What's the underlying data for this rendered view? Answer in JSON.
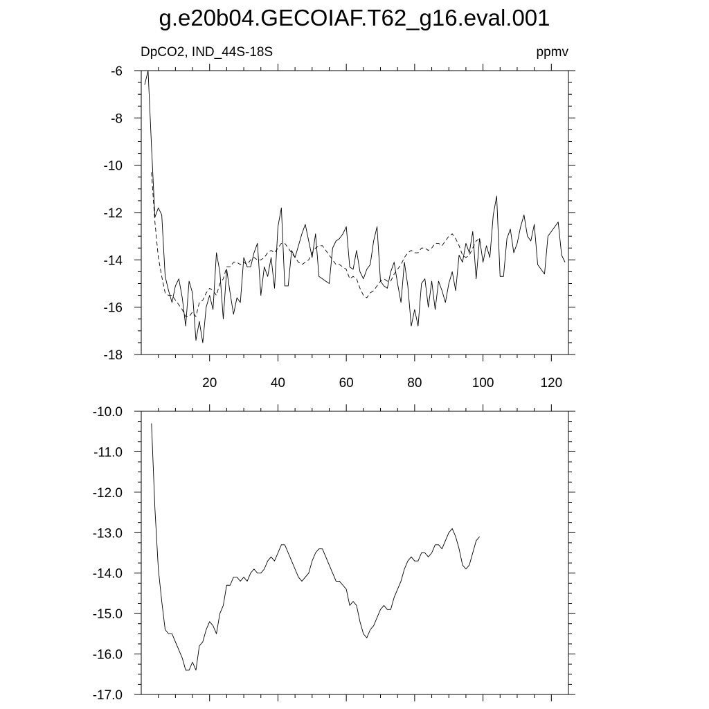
{
  "title": "g.e20b04.GECOIAF.T62_g16.eval.001",
  "left_label": "DpCO2, IND_44S-18S",
  "right_label": "ppmv",
  "chart_data": [
    {
      "type": "line",
      "xlim": [
        0,
        125
      ],
      "ylim": [
        -18,
        -6
      ],
      "xticks": [
        20,
        40,
        60,
        80,
        100,
        120
      ],
      "yticks": [
        -6,
        -8,
        -10,
        -12,
        -14,
        -16,
        -18
      ],
      "ytick_labels": [
        "-6",
        "-8",
        "-10",
        "-12",
        "-14",
        "-16",
        "-18"
      ],
      "x_start": 1,
      "series": [
        {
          "style": "solid",
          "values": [
            -6.6,
            -6.0,
            -9.2,
            -12.2,
            -11.8,
            -12.1,
            -14.7,
            -15.3,
            -15.8,
            -15.1,
            -14.8,
            -15.6,
            -16.8,
            -14.9,
            -15.4,
            -17.4,
            -16.6,
            -17.5,
            -16.0,
            -15.5,
            -16.1,
            -13.7,
            -14.5,
            -16.5,
            -14.4,
            -15.4,
            -16.3,
            -15.6,
            -15.8,
            -13.9,
            -14.3,
            -14.3,
            -13.7,
            -13.3,
            -15.5,
            -14.3,
            -14.7,
            -13.9,
            -15.2,
            -12.6,
            -11.8,
            -15.1,
            -15.1,
            -13.6,
            -13.9,
            -13.4,
            -12.9,
            -12.5,
            -13.2,
            -13.9,
            -12.9,
            -14.7,
            -14.8,
            -14.9,
            -15.0,
            -13.5,
            -13.2,
            -13.1,
            -12.9,
            -12.6,
            -14.3,
            -14.4,
            -13.6,
            -14.5,
            -14.8,
            -14.4,
            -14.2,
            -13.2,
            -12.6,
            -14.9,
            -15.1,
            -15.2,
            -14.5,
            -14.1,
            -15.0,
            -15.8,
            -14.1,
            -15.1,
            -16.8,
            -16.1,
            -16.8,
            -15.0,
            -14.8,
            -16.0,
            -14.9,
            -16.1,
            -14.9,
            -15.3,
            -15.8,
            -15.0,
            -14.5,
            -15.3,
            -13.8,
            -14.1,
            -13.3,
            -13.7,
            -12.8,
            -14.8,
            -13.1,
            -14.1,
            -13.4,
            -13.9,
            -12.1,
            -11.3,
            -14.7,
            -14.7,
            -13.1,
            -12.7,
            -13.7,
            -13.3,
            -12.6,
            -12.1,
            -13.0,
            -13.2,
            -12.5,
            -14.2,
            -14.4,
            -14.6,
            -13.0,
            -12.8,
            -12.6,
            -12.4,
            -13.8,
            -14.1
          ]
        },
        {
          "style": "dashed",
          "x_start": 3,
          "values": [
            -10.3,
            -12.4,
            -13.9,
            -14.7,
            -15.4,
            -15.5,
            -15.5,
            -15.7,
            -15.9,
            -16.1,
            -16.4,
            -16.4,
            -16.2,
            -16.4,
            -15.8,
            -15.7,
            -15.4,
            -15.2,
            -15.3,
            -15.5,
            -15.0,
            -14.8,
            -14.3,
            -14.3,
            -14.1,
            -14.1,
            -14.2,
            -14.1,
            -14.2,
            -14.0,
            -13.9,
            -14.0,
            -14.0,
            -13.9,
            -13.7,
            -13.6,
            -13.7,
            -13.5,
            -13.3,
            -13.3,
            -13.5,
            -13.7,
            -13.9,
            -14.1,
            -14.2,
            -14.1,
            -14.0,
            -13.7,
            -13.5,
            -13.4,
            -13.4,
            -13.6,
            -13.8,
            -14.0,
            -14.2,
            -14.2,
            -14.3,
            -14.4,
            -14.8,
            -14.7,
            -14.8,
            -15.2,
            -15.5,
            -15.6,
            -15.4,
            -15.3,
            -15.1,
            -14.9,
            -14.8,
            -14.9,
            -14.9,
            -14.6,
            -14.4,
            -14.2,
            -13.9,
            -13.7,
            -13.6,
            -13.7,
            -13.7,
            -13.5,
            -13.5,
            -13.6,
            -13.5,
            -13.3,
            -13.3,
            -13.4,
            -13.2,
            -13.0,
            -12.9,
            -13.1,
            -13.4,
            -13.8,
            -13.9,
            -13.8,
            -13.5,
            -13.2,
            -13.1
          ]
        }
      ]
    },
    {
      "type": "line",
      "xlim": [
        0,
        125
      ],
      "ylim": [
        -17,
        -10
      ],
      "xticks": [
        20,
        40,
        60,
        80,
        100,
        120
      ],
      "yticks": [
        -10,
        -11,
        -12,
        -13,
        -14,
        -15,
        -16,
        -17
      ],
      "ytick_labels": [
        "-10.0",
        "-11.0",
        "-12.0",
        "-13.0",
        "-14.0",
        "-15.0",
        "-16.0",
        "-17.0"
      ],
      "x_start": 3,
      "series": [
        {
          "style": "solid",
          "values": [
            -10.3,
            -12.4,
            -13.9,
            -14.7,
            -15.4,
            -15.5,
            -15.5,
            -15.7,
            -15.9,
            -16.1,
            -16.4,
            -16.4,
            -16.2,
            -16.4,
            -15.8,
            -15.7,
            -15.4,
            -15.2,
            -15.3,
            -15.5,
            -15.0,
            -14.8,
            -14.3,
            -14.3,
            -14.1,
            -14.1,
            -14.2,
            -14.1,
            -14.2,
            -14.0,
            -13.9,
            -14.0,
            -14.0,
            -13.9,
            -13.7,
            -13.6,
            -13.7,
            -13.5,
            -13.3,
            -13.3,
            -13.5,
            -13.7,
            -13.9,
            -14.1,
            -14.2,
            -14.1,
            -14.0,
            -13.7,
            -13.5,
            -13.4,
            -13.4,
            -13.6,
            -13.8,
            -14.0,
            -14.2,
            -14.2,
            -14.3,
            -14.4,
            -14.8,
            -14.7,
            -14.8,
            -15.2,
            -15.5,
            -15.6,
            -15.4,
            -15.3,
            -15.1,
            -14.9,
            -14.8,
            -14.9,
            -14.9,
            -14.6,
            -14.4,
            -14.2,
            -13.9,
            -13.7,
            -13.6,
            -13.7,
            -13.7,
            -13.5,
            -13.5,
            -13.6,
            -13.5,
            -13.3,
            -13.3,
            -13.4,
            -13.2,
            -13.0,
            -12.9,
            -13.1,
            -13.4,
            -13.8,
            -13.9,
            -13.8,
            -13.5,
            -13.2,
            -13.1
          ]
        }
      ]
    }
  ]
}
